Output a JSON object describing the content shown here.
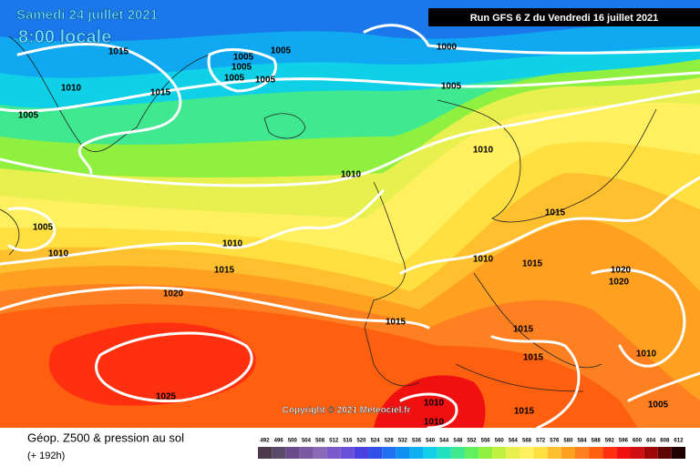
{
  "header": {
    "valid_date": "Samedi 24 juillet 2021",
    "local_time": "8:00 locale",
    "run": "Run GFS 6 Z du Vendredi 16 juillet 2021"
  },
  "isobar_labels": [
    "1015",
    "1005",
    "1000",
    "1005",
    "1005",
    "1005",
    "1005",
    "1010",
    "1015",
    "1005",
    "1005",
    "1010",
    "1010",
    "1005",
    "1015",
    "1010",
    "1010",
    "1015",
    "1010",
    "1015",
    "1020",
    "1020",
    "1020",
    "1015",
    "1015",
    "1015",
    "1010",
    "1025",
    "1010",
    "1015",
    "1005",
    "1010"
  ],
  "copyright": "Copyright © 2021 Meteociel.fr",
  "footer": {
    "title": "Géop. Z500 & pression au sol",
    "lead_time": "(+ 192h)"
  },
  "legend": {
    "labels": [
      492,
      496,
      500,
      504,
      508,
      512,
      516,
      520,
      524,
      528,
      532,
      536,
      540,
      544,
      548,
      552,
      556,
      560,
      564,
      568,
      572,
      576,
      580,
      584,
      588,
      592,
      596,
      600,
      604,
      608,
      612
    ],
    "colors": [
      "#4b3b4b",
      "#5a4a6a",
      "#6a4a8a",
      "#7a5aa0",
      "#8a6ab8",
      "#7a5ac8",
      "#6a50d8",
      "#4a40e0",
      "#3050e8",
      "#2070f0",
      "#1090f0",
      "#10b0f0",
      "#10d0e8",
      "#20e0c0",
      "#40e890",
      "#60f060",
      "#90f040",
      "#c0f040",
      "#e8f050",
      "#fff060",
      "#ffe040",
      "#ffc030",
      "#ffa020",
      "#ff8020",
      "#ff6010",
      "#ff3010",
      "#f01010",
      "#d01010",
      "#a00808",
      "#600404",
      "#200000"
    ]
  }
}
